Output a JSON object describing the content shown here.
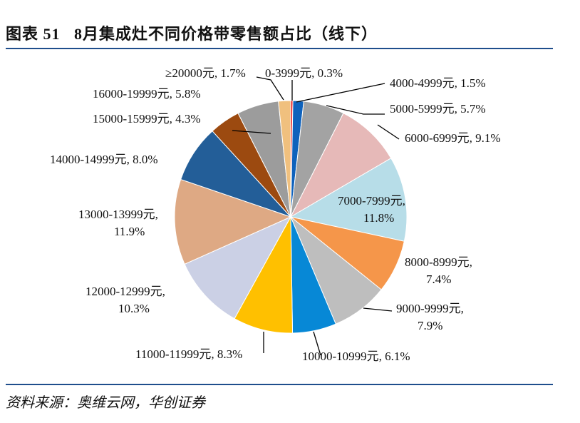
{
  "title": "图表 51   8月集成灶不同价格带零售额占比（线下）",
  "source": "资料来源：奥维云网，华创证券",
  "chart_data": {
    "type": "pie",
    "title": "",
    "unit": "%",
    "start": "top, clockwise",
    "slices": [
      {
        "label": "0-3999元",
        "value": 0.3,
        "color": "#E8262A"
      },
      {
        "label": "4000-4999元",
        "value": 1.5,
        "color": "#0F62BC"
      },
      {
        "label": "5000-5999元",
        "value": 5.7,
        "color": "#A3A3A3"
      },
      {
        "label": "6000-6999元",
        "value": 9.1,
        "color": "#E6B9B8"
      },
      {
        "label": "7000-7999元",
        "value": 11.8,
        "color": "#B7DDE8"
      },
      {
        "label": "8000-8999元",
        "value": 7.4,
        "color": "#F5964A"
      },
      {
        "label": "9000-9999元",
        "value": 7.9,
        "color": "#BEBEBE"
      },
      {
        "label": "10000-10999元",
        "value": 6.1,
        "color": "#0788D6"
      },
      {
        "label": "11000-11999元",
        "value": 8.3,
        "color": "#FFC000"
      },
      {
        "label": "12000-12999元",
        "value": 10.3,
        "color": "#CBD0E5"
      },
      {
        "label": "13000-13999元",
        "value": 11.9,
        "color": "#DEA984"
      },
      {
        "label": "14000-14999元",
        "value": 8.0,
        "color": "#235E98"
      },
      {
        "label": "15000-15999元",
        "value": 4.3,
        "color": "#9C4A10"
      },
      {
        "label": "16000-19999元",
        "value": 5.8,
        "color": "#9C9C9C"
      },
      {
        "label": "≥20000元",
        "value": 1.7,
        "color": "#F0C07E"
      }
    ]
  }
}
